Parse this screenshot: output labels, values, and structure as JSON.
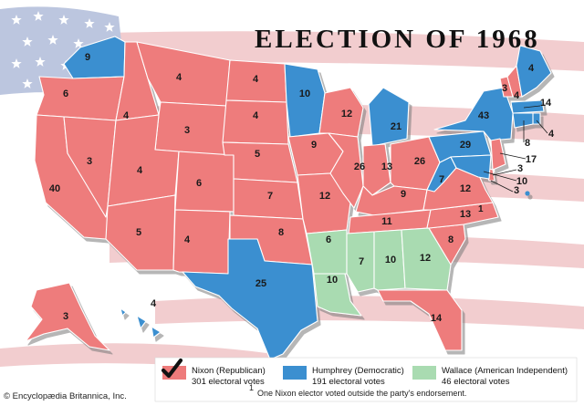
{
  "title": "ELECTION OF 1968",
  "colors": {
    "nixon": "#ee7b7b",
    "humphrey": "#3b8fd0",
    "wallace": "#a9dbb1",
    "flag_red": "#f2cdcf",
    "flag_blue": "#bcc6df"
  },
  "states": [
    {
      "id": "WA",
      "party": "humphrey",
      "ev": "9"
    },
    {
      "id": "OR",
      "party": "nixon",
      "ev": "6"
    },
    {
      "id": "CA",
      "party": "nixon",
      "ev": "40"
    },
    {
      "id": "ID",
      "party": "nixon",
      "ev": "4"
    },
    {
      "id": "NV",
      "party": "nixon",
      "ev": "3"
    },
    {
      "id": "MT",
      "party": "nixon",
      "ev": "4"
    },
    {
      "id": "WY",
      "party": "nixon",
      "ev": "3"
    },
    {
      "id": "UT",
      "party": "nixon",
      "ev": "4"
    },
    {
      "id": "AZ",
      "party": "nixon",
      "ev": "5"
    },
    {
      "id": "CO",
      "party": "nixon",
      "ev": "6"
    },
    {
      "id": "NM",
      "party": "nixon",
      "ev": "4"
    },
    {
      "id": "ND",
      "party": "nixon",
      "ev": "4"
    },
    {
      "id": "SD",
      "party": "nixon",
      "ev": "4"
    },
    {
      "id": "NE",
      "party": "nixon",
      "ev": "5"
    },
    {
      "id": "KS",
      "party": "nixon",
      "ev": "7"
    },
    {
      "id": "OK",
      "party": "nixon",
      "ev": "8"
    },
    {
      "id": "TX",
      "party": "humphrey",
      "ev": "25"
    },
    {
      "id": "MN",
      "party": "humphrey",
      "ev": "10"
    },
    {
      "id": "IA",
      "party": "nixon",
      "ev": "9"
    },
    {
      "id": "MO",
      "party": "nixon",
      "ev": "12"
    },
    {
      "id": "AR",
      "party": "wallace",
      "ev": "6"
    },
    {
      "id": "LA",
      "party": "wallace",
      "ev": "10"
    },
    {
      "id": "WI",
      "party": "nixon",
      "ev": "12"
    },
    {
      "id": "IL",
      "party": "nixon",
      "ev": "26"
    },
    {
      "id": "MI",
      "party": "humphrey",
      "ev": "21"
    },
    {
      "id": "IN",
      "party": "nixon",
      "ev": "13"
    },
    {
      "id": "OH",
      "party": "nixon",
      "ev": "26"
    },
    {
      "id": "KY",
      "party": "nixon",
      "ev": "9"
    },
    {
      "id": "TN",
      "party": "nixon",
      "ev": "11"
    },
    {
      "id": "MS",
      "party": "wallace",
      "ev": "7"
    },
    {
      "id": "AL",
      "party": "wallace",
      "ev": "10"
    },
    {
      "id": "GA",
      "party": "wallace",
      "ev": "12"
    },
    {
      "id": "FL",
      "party": "nixon",
      "ev": "14"
    },
    {
      "id": "SC",
      "party": "nixon",
      "ev": "8"
    },
    {
      "id": "NC",
      "party": "nixon",
      "ev": "13"
    },
    {
      "id": "VA",
      "party": "nixon",
      "ev": "12"
    },
    {
      "id": "WV",
      "party": "humphrey",
      "ev": "7"
    },
    {
      "id": "PA",
      "party": "humphrey",
      "ev": "29"
    },
    {
      "id": "NY",
      "party": "humphrey",
      "ev": "43"
    },
    {
      "id": "VT",
      "party": "nixon",
      "ev": "3"
    },
    {
      "id": "NH",
      "party": "nixon",
      "ev": "4"
    },
    {
      "id": "ME",
      "party": "humphrey",
      "ev": "4"
    },
    {
      "id": "MA",
      "party": "humphrey",
      "ev": "14"
    },
    {
      "id": "RI",
      "party": "humphrey",
      "ev": "4"
    },
    {
      "id": "CT",
      "party": "humphrey",
      "ev": "8"
    },
    {
      "id": "NJ",
      "party": "nixon",
      "ev": "17"
    },
    {
      "id": "DE",
      "party": "nixon",
      "ev": "3"
    },
    {
      "id": "MD",
      "party": "humphrey",
      "ev": "10"
    },
    {
      "id": "DC",
      "party": "humphrey",
      "ev": "3"
    },
    {
      "id": "AK",
      "party": "nixon",
      "ev": "3"
    },
    {
      "id": "HI",
      "party": "humphrey",
      "ev": "4"
    }
  ],
  "nc_footnote_marker": "1",
  "legend": {
    "nixon": {
      "name": "Nixon (Republican)",
      "votes": "301 electoral votes"
    },
    "humphrey": {
      "name": "Humphrey (Democratic)",
      "votes": "191 electoral votes"
    },
    "wallace": {
      "name": "Wallace (American Independent)",
      "votes": "46 electoral votes"
    },
    "footnote_marker": "1",
    "footnote": "One Nixon elector voted outside the party's endorsement.",
    "winner_mark": "check-mark-icon"
  },
  "copyright": "© Encyclopædia Britannica, Inc."
}
